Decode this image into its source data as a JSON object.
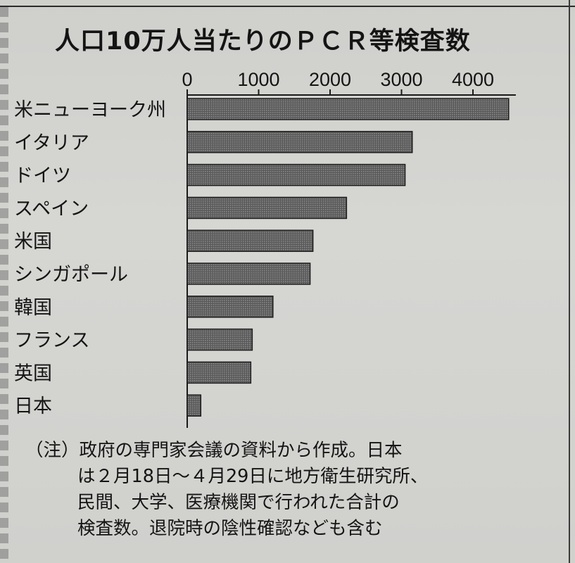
{
  "chart_data": {
    "type": "bar",
    "orientation": "horizontal",
    "title": "人口10万人当たりのＰＣＲ等検査数",
    "categories": [
      "米ニューヨーク州",
      "イタリア",
      "ドイツ",
      "スペイン",
      "米国",
      "シンガポール",
      "韓国",
      "フランス",
      "英国",
      "日本"
    ],
    "values": [
      4500,
      3150,
      3050,
      2230,
      1760,
      1720,
      1200,
      910,
      890,
      190
    ],
    "xlim": [
      0,
      4600
    ],
    "xticks": [
      0,
      1000,
      2000,
      3000,
      4000
    ],
    "xtick_labels": [
      "0",
      "1000",
      "2000",
      "3000",
      "4000"
    ],
    "axis_position": "top",
    "bar_fill": "crosshatch-gray"
  },
  "note": {
    "prefix": "（注）",
    "lines": [
      "政府の専門家会議の資料から作成。日本",
      "は２月18日～４月29日に地方衛生研究所、",
      "民間、大学、医療機関で行われた合計の",
      "検査数。退院時の陰性確認なども含む"
    ]
  }
}
